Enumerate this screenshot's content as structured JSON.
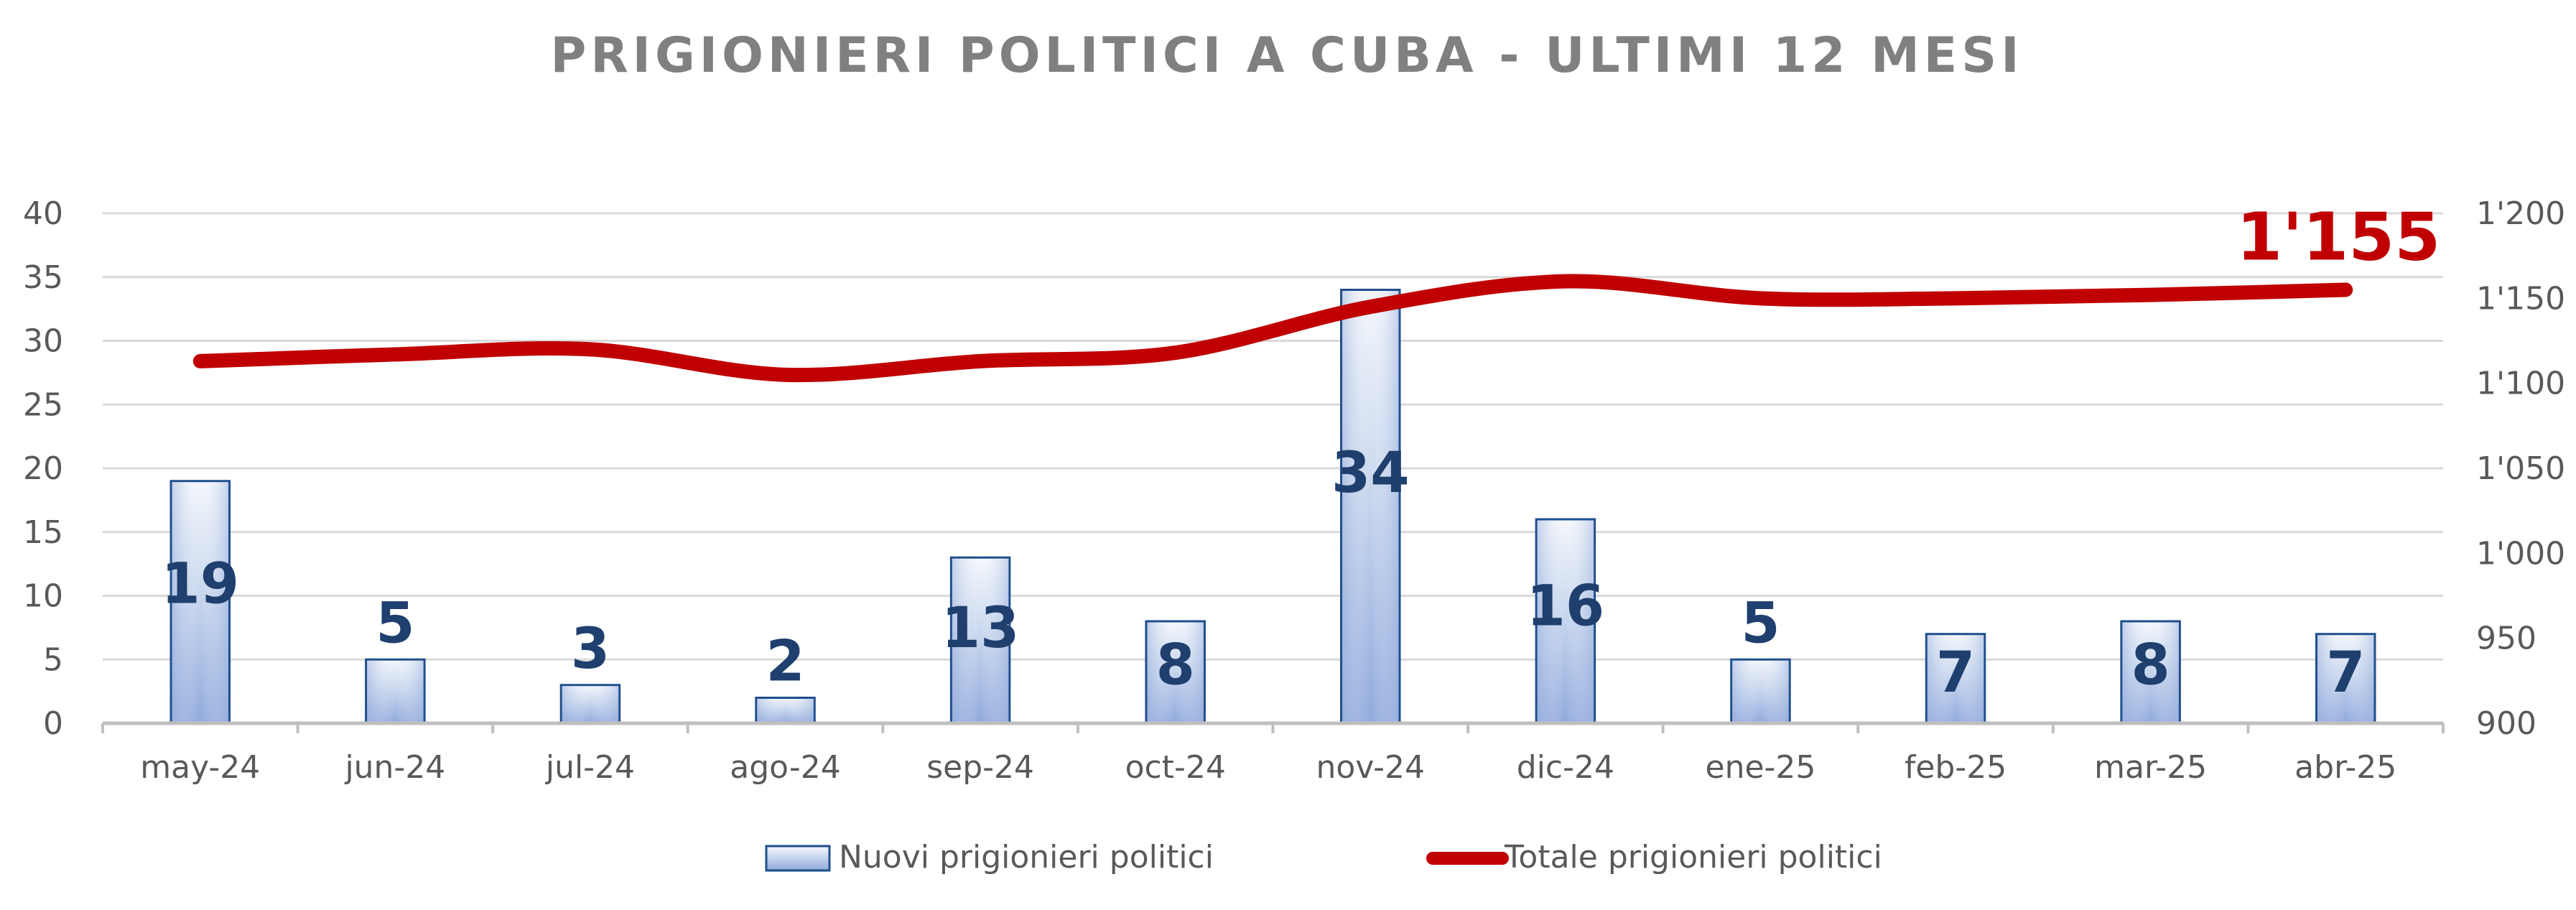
{
  "chart_data": {
    "type": "bar",
    "title": "PRIGIONIERI POLITICI A CUBA - ULTIMI 12 MESI",
    "categories": [
      "may-24",
      "jun-24",
      "jul-24",
      "ago-24",
      "sep-24",
      "oct-24",
      "nov-24",
      "dic-24",
      "ene-25",
      "feb-25",
      "mar-25",
      "abr-25"
    ],
    "series": [
      {
        "name": "Nuovi prigionieri politici",
        "type": "bar",
        "axis": "left",
        "values": [
          19,
          5,
          3,
          2,
          13,
          8,
          34,
          16,
          5,
          7,
          8,
          7
        ],
        "color": "#4472C4"
      },
      {
        "name": "Totale prigionieri politici",
        "type": "line",
        "axis": "right",
        "values": [
          1113,
          1117,
          1120,
          1105,
          1113,
          1118,
          1145,
          1160,
          1150,
          1150,
          1152,
          1155
        ],
        "color": "#C00000"
      }
    ],
    "ylim": [
      0,
      40
    ],
    "yticks": [
      "0",
      "5",
      "10",
      "15",
      "20",
      "25",
      "30",
      "35",
      "40"
    ],
    "y2lim": [
      900,
      1200
    ],
    "y2ticks": [
      "900",
      "950",
      "1'000",
      "1'050",
      "1'100",
      "1'150",
      "1'200"
    ],
    "end_label": "1'155",
    "grid": true,
    "legend_position": "bottom"
  }
}
